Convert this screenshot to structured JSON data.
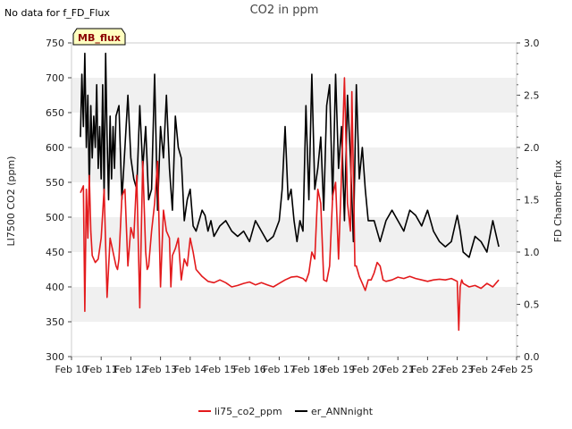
{
  "title": "CO2 in ppm",
  "no_data_note": "No data for f_FD_Flux",
  "mb_flux_label": "MB_flux",
  "chart_data": {
    "type": "line",
    "xlabel": "",
    "ylabel": "LI7500 CO2 (ppm)",
    "y2label": "FD Chamber flux",
    "xlim": [
      10,
      25
    ],
    "ylim": [
      300,
      750
    ],
    "y2lim": [
      0.0,
      3.0
    ],
    "x_tick_labels": [
      "Feb 10",
      "Feb 11",
      "Feb 12",
      "Feb 13",
      "Feb 14",
      "Feb 15",
      "Feb 16",
      "Feb 17",
      "Feb 18",
      "Feb 19",
      "Feb 20",
      "Feb 21",
      "Feb 22",
      "Feb 23",
      "Feb 24",
      "Feb 25"
    ],
    "y_ticks": [
      300,
      350,
      400,
      450,
      500,
      550,
      600,
      650,
      700,
      750
    ],
    "y2_ticks": [
      "0.0",
      "0.5",
      "1.0",
      "1.5",
      "2.0",
      "2.5",
      "3.0"
    ],
    "grid": "horizontal bands",
    "legend_position": "bottom-center",
    "series": [
      {
        "name": "li75_co2_ppm",
        "axis": "left",
        "color": "#e31a1c",
        "x": [
          10.3,
          10.4,
          10.45,
          10.5,
          10.55,
          10.6,
          10.65,
          10.7,
          10.8,
          10.9,
          11.0,
          11.1,
          11.2,
          11.3,
          11.4,
          11.5,
          11.55,
          11.6,
          11.7,
          11.8,
          11.9,
          12.0,
          12.1,
          12.2,
          12.3,
          12.4,
          12.5,
          12.55,
          12.6,
          12.7,
          12.8,
          12.9,
          13.0,
          13.1,
          13.2,
          13.3,
          13.35,
          13.4,
          13.5,
          13.6,
          13.7,
          13.8,
          13.9,
          14.0,
          14.1,
          14.2,
          14.4,
          14.6,
          14.8,
          15.0,
          15.2,
          15.4,
          15.6,
          15.8,
          16.0,
          16.2,
          16.4,
          16.6,
          16.8,
          17.0,
          17.2,
          17.4,
          17.6,
          17.8,
          17.9,
          18.0,
          18.1,
          18.2,
          18.3,
          18.4,
          18.5,
          18.6,
          18.7,
          18.8,
          18.9,
          19.0,
          19.1,
          19.2,
          19.3,
          19.4,
          19.45,
          19.5,
          19.55,
          19.6,
          19.7,
          19.8,
          19.9,
          20.0,
          20.1,
          20.2,
          20.3,
          20.4,
          20.5,
          20.6,
          20.8,
          21.0,
          21.2,
          21.4,
          21.6,
          21.8,
          22.0,
          22.2,
          22.4,
          22.6,
          22.8,
          23.0,
          23.05,
          23.1,
          23.15,
          23.2,
          23.4,
          23.6,
          23.8,
          24.0,
          24.2,
          24.4
        ],
        "y": [
          535,
          545,
          365,
          540,
          470,
          560,
          480,
          445,
          435,
          440,
          470,
          540,
          385,
          470,
          450,
          430,
          425,
          440,
          530,
          540,
          430,
          485,
          470,
          560,
          370,
          580,
          450,
          425,
          430,
          480,
          520,
          580,
          400,
          510,
          480,
          470,
          400,
          445,
          455,
          470,
          410,
          440,
          430,
          470,
          450,
          425,
          415,
          408,
          406,
          410,
          406,
          400,
          402,
          405,
          407,
          403,
          406,
          403,
          400,
          405,
          410,
          414,
          415,
          412,
          408,
          420,
          450,
          440,
          540,
          520,
          410,
          408,
          430,
          530,
          550,
          440,
          560,
          700,
          520,
          480,
          680,
          560,
          430,
          430,
          415,
          405,
          395,
          410,
          410,
          420,
          435,
          430,
          410,
          408,
          410,
          414,
          412,
          415,
          412,
          410,
          408,
          410,
          411,
          410,
          412,
          408,
          338,
          400,
          410,
          405,
          400,
          402,
          398,
          405,
          400,
          410
        ]
      },
      {
        "name": "er_ANNnight",
        "axis": "right",
        "color": "#000000",
        "x": [
          10.3,
          10.35,
          10.4,
          10.45,
          10.5,
          10.55,
          10.6,
          10.65,
          10.7,
          10.75,
          10.8,
          10.85,
          10.9,
          10.95,
          11.0,
          11.05,
          11.1,
          11.15,
          11.2,
          11.25,
          11.3,
          11.35,
          11.4,
          11.45,
          11.5,
          11.6,
          11.7,
          11.8,
          11.9,
          12.0,
          12.1,
          12.2,
          12.3,
          12.4,
          12.5,
          12.6,
          12.7,
          12.8,
          12.9,
          13.0,
          13.1,
          13.2,
          13.3,
          13.4,
          13.5,
          13.6,
          13.7,
          13.8,
          13.9,
          14.0,
          14.1,
          14.2,
          14.3,
          14.4,
          14.5,
          14.6,
          14.7,
          14.8,
          14.9,
          15.0,
          15.2,
          15.4,
          15.6,
          15.8,
          16.0,
          16.2,
          16.4,
          16.6,
          16.8,
          17.0,
          17.1,
          17.2,
          17.3,
          17.4,
          17.5,
          17.6,
          17.7,
          17.8,
          17.9,
          18.0,
          18.1,
          18.2,
          18.3,
          18.4,
          18.5,
          18.6,
          18.7,
          18.8,
          18.9,
          19.0,
          19.1,
          19.2,
          19.3,
          19.4,
          19.5,
          19.6,
          19.7,
          19.8,
          19.9,
          20.0,
          20.2,
          20.4,
          20.6,
          20.8,
          21.0,
          21.2,
          21.4,
          21.6,
          21.8,
          22.0,
          22.2,
          22.4,
          22.6,
          22.8,
          23.0,
          23.1,
          23.2,
          23.4,
          23.6,
          23.8,
          24.0,
          24.2,
          24.4
        ],
        "y": [
          2.1,
          2.7,
          2.2,
          2.9,
          2.0,
          2.5,
          1.6,
          2.4,
          1.9,
          2.3,
          2.0,
          2.6,
          1.8,
          2.2,
          1.7,
          2.6,
          1.5,
          2.9,
          2.1,
          1.5,
          2.3,
          1.7,
          2.2,
          1.8,
          2.3,
          2.4,
          1.5,
          2.0,
          2.5,
          1.9,
          1.7,
          1.6,
          2.4,
          1.8,
          2.2,
          1.5,
          1.6,
          2.7,
          1.4,
          2.2,
          1.9,
          2.5,
          1.8,
          1.4,
          2.3,
          2.0,
          1.9,
          1.3,
          1.5,
          1.6,
          1.25,
          1.2,
          1.3,
          1.4,
          1.35,
          1.2,
          1.3,
          1.15,
          1.2,
          1.25,
          1.3,
          1.2,
          1.15,
          1.2,
          1.1,
          1.3,
          1.2,
          1.1,
          1.15,
          1.3,
          1.6,
          2.2,
          1.5,
          1.6,
          1.3,
          1.1,
          1.3,
          1.2,
          2.4,
          1.5,
          2.7,
          1.6,
          1.8,
          2.1,
          1.4,
          2.4,
          2.6,
          1.5,
          2.7,
          1.8,
          2.2,
          1.3,
          2.5,
          1.9,
          1.1,
          2.6,
          1.7,
          2.0,
          1.6,
          1.3,
          1.3,
          1.1,
          1.3,
          1.4,
          1.3,
          1.2,
          1.4,
          1.35,
          1.25,
          1.4,
          1.2,
          1.1,
          1.05,
          1.1,
          1.35,
          1.2,
          1.0,
          0.95,
          1.15,
          1.1,
          1.0,
          1.3,
          1.05
        ]
      }
    ]
  }
}
